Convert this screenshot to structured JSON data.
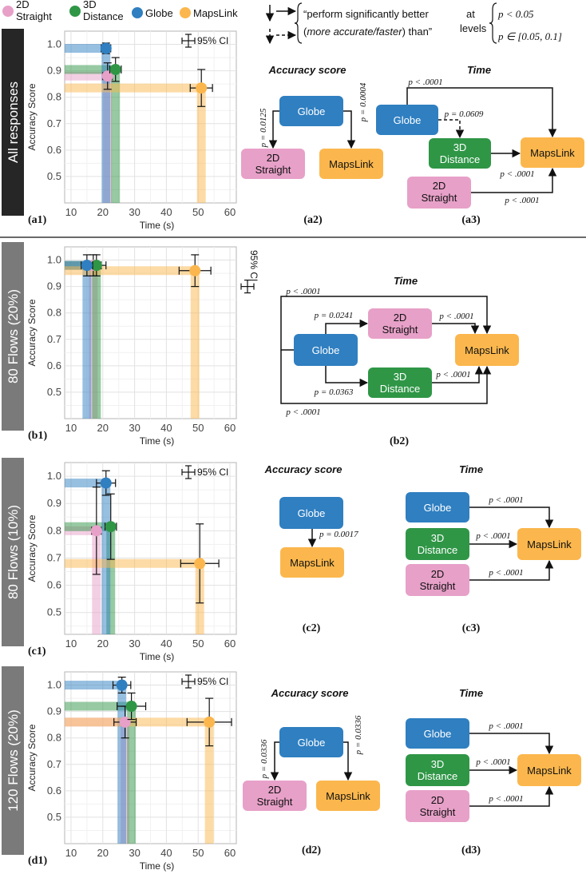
{
  "colors": {
    "2D Straight": "#e7a0c8",
    "3D Distance": "#2f9646",
    "Globe": "#2f7fc1",
    "MapsLink": "#fbb74d"
  },
  "legend": {
    "items": [
      {
        "key": "2D Straight",
        "lines": [
          "2D",
          "Straight"
        ]
      },
      {
        "key": "3D Distance",
        "lines": [
          "3D",
          "Distance"
        ]
      },
      {
        "key": "Globe",
        "lines": [
          "Globe"
        ]
      },
      {
        "key": "MapsLink",
        "lines": [
          "MapsLink"
        ]
      }
    ]
  },
  "notation": {
    "line1": "“perform significantly better",
    "line2_open": "(",
    "line2_em": "more accurate/faster",
    "line2_close": ") than”",
    "at_levels": [
      "at",
      "levels"
    ],
    "level1": "p < 0.05",
    "level2": "p ∈ [0.05, 0.1]"
  },
  "ci_label": "95% CI",
  "chart_data": [
    {
      "id": "a1",
      "type": "scatter",
      "row_label": "All responses",
      "panel_label": "(a1)",
      "xlabel": "Time (s)",
      "ylabel": "Accuracy Score",
      "xlim": [
        8,
        62
      ],
      "ylim": [
        0.4,
        1.05
      ],
      "xticks": [
        "10",
        "20",
        "30",
        "40",
        "50",
        "60"
      ],
      "yticks": [
        "0.5",
        "0.6",
        "0.7",
        "0.8",
        "0.9",
        "1.0"
      ],
      "grid": true,
      "ci_legend": "top-right",
      "points": [
        {
          "name": "2D Straight",
          "x": 21.5,
          "y": 0.88,
          "xerr": 1.5,
          "yerr": 0.05
        },
        {
          "name": "3D Distance",
          "x": 24,
          "y": 0.905,
          "xerr": 1.8,
          "yerr": 0.045
        },
        {
          "name": "Globe",
          "x": 21,
          "y": 0.985,
          "xerr": 1.5,
          "yerr": 0.02
        },
        {
          "name": "MapsLink",
          "x": 51,
          "y": 0.835,
          "xerr": 3.5,
          "yerr": 0.07
        }
      ]
    },
    {
      "id": "b1",
      "type": "scatter",
      "row_label": "80 Flows (20%)",
      "panel_label": "(b1)",
      "xlabel": "Time (s)",
      "ylabel": "Accuracy Score",
      "xlim": [
        8,
        62
      ],
      "ylim": [
        0.4,
        1.05
      ],
      "xticks": [
        "10",
        "20",
        "30",
        "40",
        "50",
        "60"
      ],
      "yticks": [
        "0.5",
        "0.6",
        "0.7",
        "0.8",
        "0.9",
        "1.0"
      ],
      "grid": true,
      "ci_legend": "right",
      "points": [
        {
          "name": "2D Straight",
          "x": 17,
          "y": 0.98,
          "xerr": 2.5,
          "yerr": 0.04
        },
        {
          "name": "3D Distance",
          "x": 18,
          "y": 0.98,
          "xerr": 3.0,
          "yerr": 0.04
        },
        {
          "name": "Globe",
          "x": 15,
          "y": 0.98,
          "xerr": 1.8,
          "yerr": 0.04
        },
        {
          "name": "MapsLink",
          "x": 49,
          "y": 0.96,
          "xerr": 5.0,
          "yerr": 0.06
        }
      ]
    },
    {
      "id": "c1",
      "type": "scatter",
      "row_label": "80 Flows (10%)",
      "panel_label": "(c1)",
      "xlabel": "Time (s)",
      "ylabel": "Accuracy Score",
      "xlim": [
        8,
        62
      ],
      "ylim": [
        0.42,
        1.05
      ],
      "xticks": [
        "10",
        "20",
        "30",
        "40",
        "50",
        "60"
      ],
      "yticks": [
        "0.5",
        "0.6",
        "0.7",
        "0.8",
        "0.9",
        "1.0"
      ],
      "grid": true,
      "ci_legend": "top-right",
      "points": [
        {
          "name": "2D Straight",
          "x": 18,
          "y": 0.8,
          "xerr": 1.5,
          "yerr": 0.16
        },
        {
          "name": "3D Distance",
          "x": 22.5,
          "y": 0.815,
          "xerr": 1.8,
          "yerr": 0.12
        },
        {
          "name": "Globe",
          "x": 21,
          "y": 0.975,
          "xerr": 3.0,
          "yerr": 0.045
        },
        {
          "name": "MapsLink",
          "x": 50.5,
          "y": 0.68,
          "xerr": 6.0,
          "yerr": 0.145
        }
      ]
    },
    {
      "id": "d1",
      "type": "scatter",
      "row_label": "120 Flows (20%)",
      "panel_label": "(d1)",
      "xlabel": "Time (s)",
      "ylabel": "Accuracy Score",
      "xlim": [
        8,
        62
      ],
      "ylim": [
        0.4,
        1.05
      ],
      "xticks": [
        "10",
        "20",
        "30",
        "40",
        "50",
        "60"
      ],
      "yticks": [
        "0.5",
        "0.6",
        "0.7",
        "0.8",
        "0.9",
        "1.0"
      ],
      "grid": true,
      "ci_legend": "top-right",
      "points": [
        {
          "name": "2D Straight",
          "x": 27,
          "y": 0.86,
          "xerr": 3.5,
          "yerr": 0.06
        },
        {
          "name": "3D Distance",
          "x": 29,
          "y": 0.92,
          "xerr": 4.5,
          "yerr": 0.05
        },
        {
          "name": "Globe",
          "x": 26,
          "y": 1.0,
          "xerr": 2.8,
          "yerr": 0.03
        },
        {
          "name": "MapsLink",
          "x": 53.5,
          "y": 0.86,
          "xerr": 7.0,
          "yerr": 0.09
        }
      ]
    }
  ],
  "diagrams": {
    "a2": {
      "title": "Accuracy score",
      "label": "(a2)",
      "p_left": "p = 0.0125",
      "p_right": "p = 0.0004"
    },
    "a3": {
      "title": "Time",
      "label": "(a3)",
      "p_top": "p < .0001",
      "p_dash": "p = 0.0609",
      "p_straight_a": "p < .0001",
      "p_straight_b": "p < .0001"
    },
    "b2": {
      "title": "Time",
      "label": "(b2)",
      "p_outer_top": "p < .0001",
      "p_g_2d": "p = 0.0241",
      "p_2d_m": "p < .0001",
      "p_g_3d": "p = 0.0363",
      "p_3d_m": "p < .0001",
      "p_outer_bottom": "p < .0001"
    },
    "c2": {
      "title": "Accuracy score",
      "label": "(c2)",
      "p": "p = 0.0017"
    },
    "c3": {
      "title": "Time",
      "label": "(c3)",
      "p1": "p < .0001",
      "p2": "p < .0001",
      "p3": "p < .0001"
    },
    "d2": {
      "title": "Accuracy score",
      "label": "(d2)",
      "p_left": "p = 0.0336",
      "p_right": "p = 0.0336"
    },
    "d3": {
      "title": "Time",
      "label": "(d3)",
      "p1": "p < .0001",
      "p2": "p < .0001",
      "p3": "p < .0001"
    }
  },
  "nodes": {
    "globe": "Globe",
    "mapslink": "MapsLink",
    "straight": [
      "2D",
      "Straight"
    ],
    "distance": [
      "3D",
      "Distance"
    ]
  }
}
